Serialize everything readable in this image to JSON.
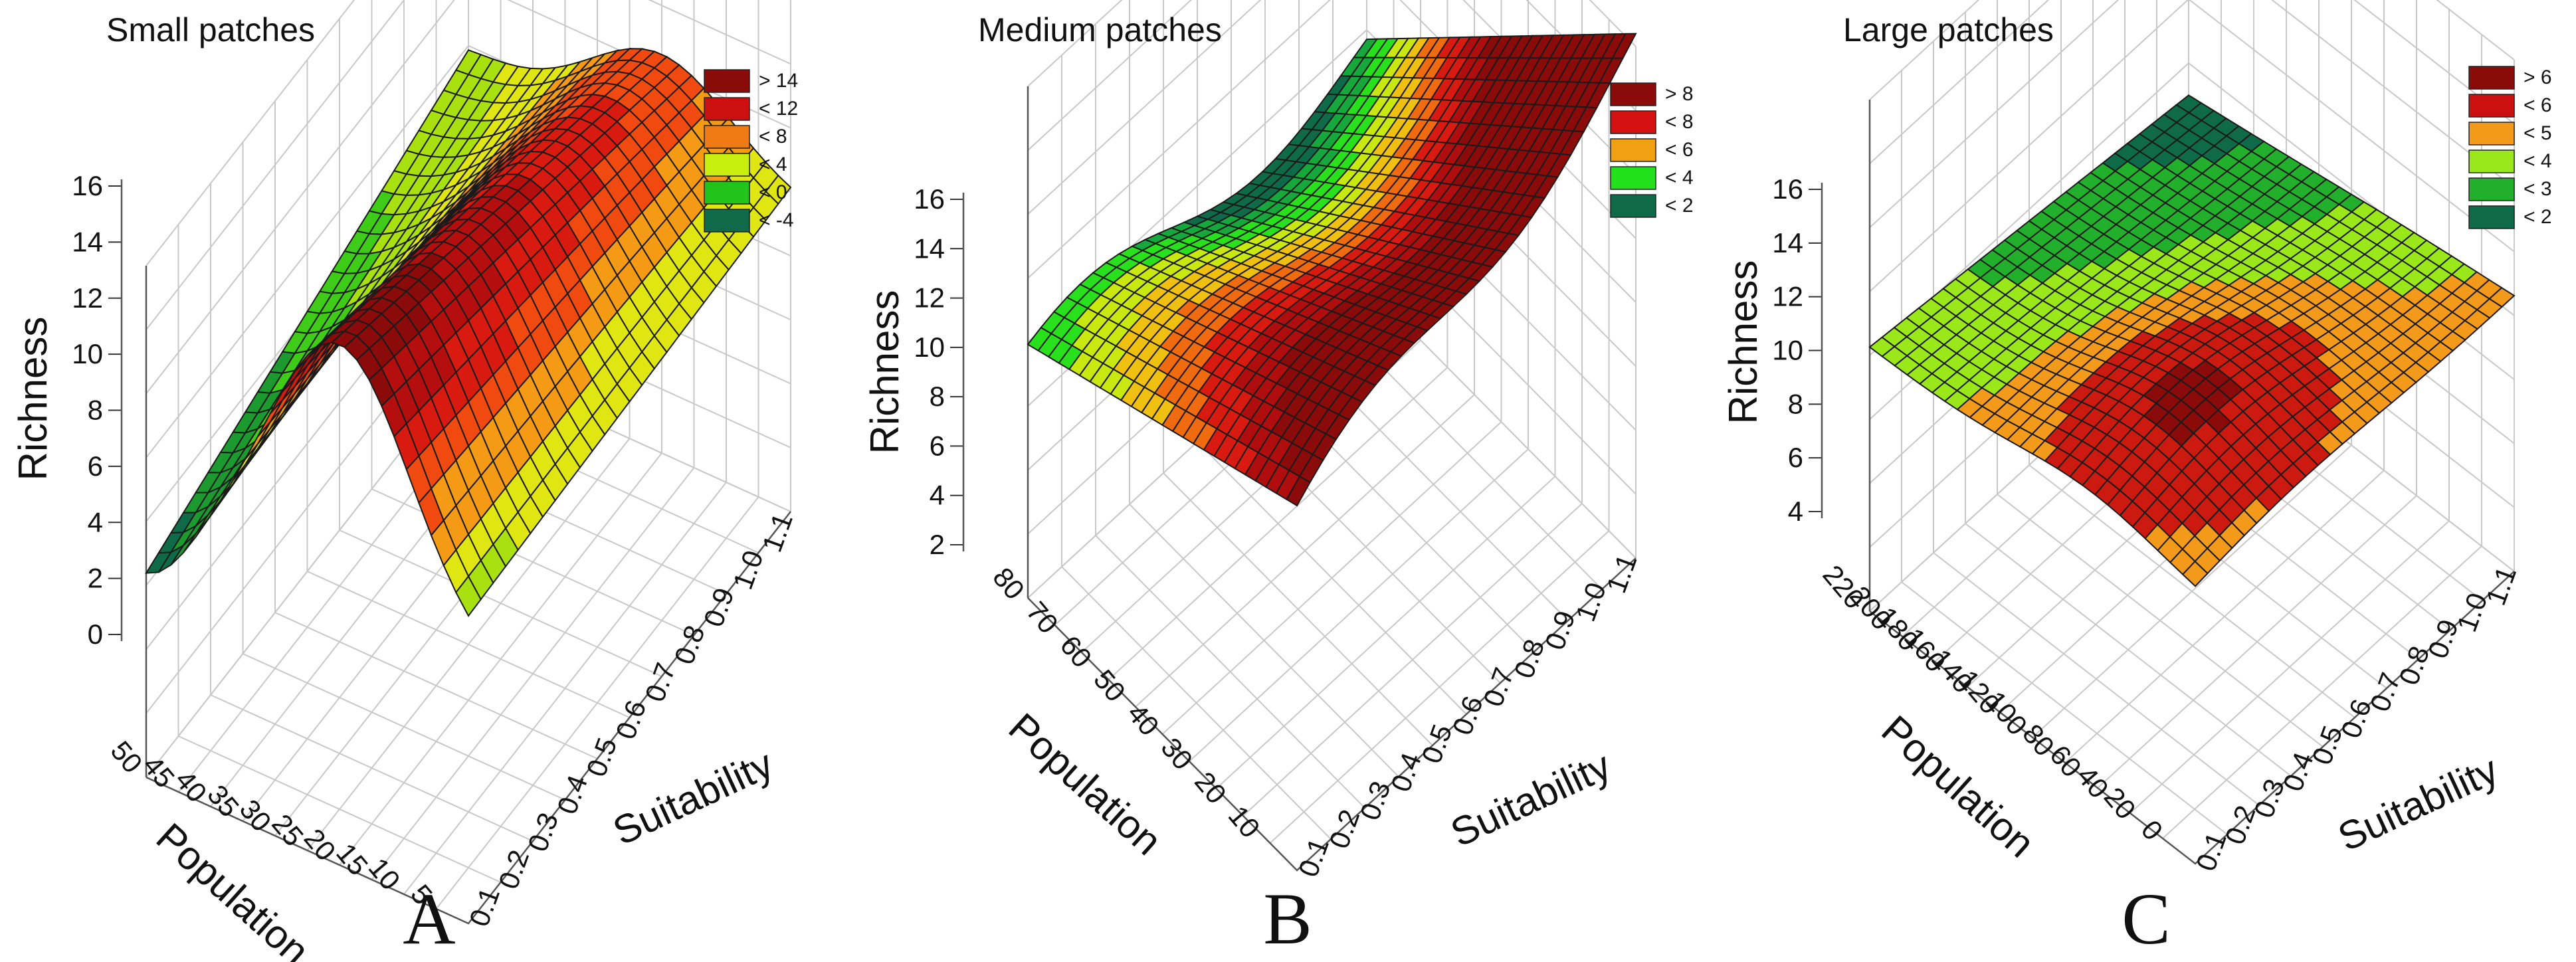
{
  "chart_data": [
    {
      "type": "surface3d",
      "panel_label": "A",
      "title": "Small patches",
      "xlabel": "Population",
      "ylabel": "Suitability",
      "zlabel": "Richness",
      "x_ticks": [
        "50",
        "45",
        "40",
        "35",
        "30",
        "25",
        "20",
        "15",
        "10",
        "5"
      ],
      "y_ticks": [
        "0.1",
        "0.2",
        "0.3",
        "0.4",
        "0.5",
        "0.6",
        "0.7",
        "0.8",
        "0.9",
        "1.0",
        "1.1"
      ],
      "z_ticks": [
        "16",
        "14",
        "12",
        "10",
        "8",
        "6",
        "4",
        "2",
        "0"
      ],
      "xlim": [
        5,
        50
      ],
      "ylim": [
        0.1,
        1.1
      ],
      "zlim": [
        -2,
        16
      ],
      "legend": [
        {
          "label": "> 14",
          "color": "#8b0a0a"
        },
        {
          "label": "< 12",
          "color": "#cc1010"
        },
        {
          "label": "< 8",
          "color": "#f07a14"
        },
        {
          "label": "< 4",
          "color": "#c8ee10"
        },
        {
          "label": "< 0",
          "color": "#22c41c"
        },
        {
          "label": "< -4",
          "color": "#0e6a48"
        }
      ],
      "surface": {
        "description_points": [
          {
            "population": 50,
            "suitability": 0.1,
            "richness": 5
          },
          {
            "population": 30,
            "suitability": 0.1,
            "richness": 16
          },
          {
            "population": 5,
            "suitability": 0.1,
            "richness": -4
          },
          {
            "population": 50,
            "suitability": 1.1,
            "richness": 4
          },
          {
            "population": 5,
            "suitability": 1.1,
            "richness": 1
          }
        ]
      }
    },
    {
      "type": "surface3d",
      "panel_label": "B",
      "title": "Medium patches",
      "xlabel": "Population",
      "ylabel": "Suitability",
      "zlabel": "Richness",
      "x_ticks": [
        "80",
        "70",
        "60",
        "50",
        "40",
        "30",
        "20",
        "10"
      ],
      "y_ticks": [
        "0.1",
        "0.2",
        "0.3",
        "0.4",
        "0.5",
        "0.6",
        "0.7",
        "0.8",
        "0.9",
        "1.0",
        "1.1"
      ],
      "z_ticks": [
        "16",
        "14",
        "12",
        "10",
        "8",
        "6",
        "4",
        "2"
      ],
      "xlim": [
        10,
        80
      ],
      "ylim": [
        0.1,
        1.1
      ],
      "zlim": [
        0,
        16
      ],
      "legend": [
        {
          "label": "> 8",
          "color": "#8b0a0a"
        },
        {
          "label": "< 8",
          "color": "#d41010"
        },
        {
          "label": "< 6",
          "color": "#f0a010"
        },
        {
          "label": "< 4",
          "color": "#22e01c"
        },
        {
          "label": "< 2",
          "color": "#0e6a48"
        }
      ],
      "surface": {
        "description_points": [
          {
            "population": 80,
            "suitability": 0.1,
            "richness": 7
          },
          {
            "population": 80,
            "suitability": 1.1,
            "richness": 16
          },
          {
            "population": 10,
            "suitability": 0.1,
            "richness": 0
          },
          {
            "population": 10,
            "suitability": 1.1,
            "richness": 2
          }
        ]
      }
    },
    {
      "type": "surface3d",
      "panel_label": "C",
      "title": "Large patches",
      "xlabel": "Population",
      "ylabel": "Suitability",
      "zlabel": "Richness",
      "x_ticks": [
        "220",
        "200",
        "180",
        "160",
        "140",
        "120",
        "100",
        "80",
        "60",
        "40",
        "20",
        "0"
      ],
      "y_ticks": [
        "0.1",
        "0.2",
        "0.3",
        "0.4",
        "0.5",
        "0.6",
        "0.7",
        "0.8",
        "0.9",
        "1.0",
        "1.1"
      ],
      "z_ticks": [
        "16",
        "14",
        "12",
        "10",
        "8",
        "6",
        "4"
      ],
      "xlim": [
        0,
        220
      ],
      "ylim": [
        0.1,
        1.1
      ],
      "zlim": [
        2,
        16
      ],
      "legend": [
        {
          "label": "> 6",
          "color": "#8b0a0a"
        },
        {
          "label": "< 6",
          "color": "#cc1010"
        },
        {
          "label": "< 5",
          "color": "#f39a1a"
        },
        {
          "label": "< 4",
          "color": "#9be81a"
        },
        {
          "label": "< 3",
          "color": "#22b02c"
        },
        {
          "label": "< 2",
          "color": "#0e6a48"
        }
      ],
      "surface": {
        "description_points": [
          {
            "population": 220,
            "suitability": 0.1,
            "richness": 5
          },
          {
            "population": 220,
            "suitability": 1.1,
            "richness": 6
          },
          {
            "population": 0,
            "suitability": 0.1,
            "richness": 4
          },
          {
            "population": 0,
            "suitability": 1.1,
            "richness": 2
          }
        ]
      }
    }
  ]
}
